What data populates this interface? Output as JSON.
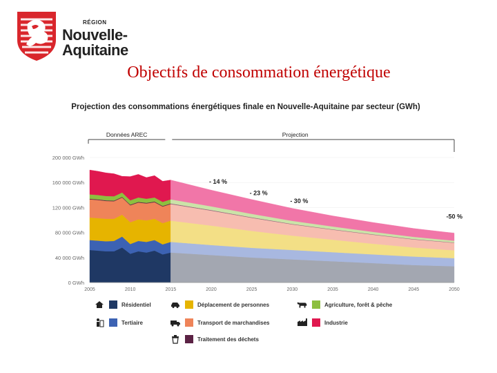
{
  "logo": {
    "region_label": "RÉGION",
    "name_line1": "Nouvelle-",
    "name_line2": "Aquitaine",
    "brand_color": "#d9262c"
  },
  "slide_title": "Objectifs de consommation énergétique",
  "chart_data": {
    "type": "area",
    "stacked": true,
    "title": "Projection des consommations énergétiques finale en Nouvelle-Aquitaine par secteur (GWh)",
    "xlabel": "",
    "ylabel": "",
    "xlim": [
      2005,
      2050
    ],
    "ylim": [
      0,
      200000
    ],
    "x_ticks": [
      2005,
      2010,
      2015,
      2020,
      2025,
      2030,
      2035,
      2040,
      2045,
      2050
    ],
    "x_tick_labels": [
      "2005",
      "2010",
      "2015",
      "2020",
      "2025",
      "2030",
      "2035",
      "2040",
      "2045",
      "2050"
    ],
    "y_ticks": [
      0,
      40000,
      80000,
      120000,
      160000,
      200000
    ],
    "y_tick_labels": [
      "0 GWh",
      "40 000 GWh",
      "80 000 GWh",
      "120 000 GWh",
      "160 000 GWh",
      "200 000 GWh"
    ],
    "periods": [
      {
        "label": "Données AREC",
        "from": 2005,
        "to": 2015
      },
      {
        "label": "Projection",
        "from": 2015,
        "to": 2050
      }
    ],
    "x": [
      2005,
      2006,
      2007,
      2008,
      2009,
      2010,
      2011,
      2012,
      2013,
      2014,
      2015,
      2020,
      2025,
      2030,
      2035,
      2040,
      2045,
      2050
    ],
    "series": [
      {
        "name": "Résidentiel",
        "color": "#1f3864",
        "projection_color": "#a3a7b1",
        "values": [
          52000,
          51000,
          50000,
          50000,
          56000,
          46000,
          50000,
          48000,
          51000,
          45000,
          48000,
          44000,
          40000,
          37000,
          34000,
          31000,
          28000,
          26000
        ]
      },
      {
        "name": "Tertiaire",
        "color": "#3c62b3",
        "projection_color": "#a8b8e0",
        "values": [
          16000,
          16000,
          16000,
          16500,
          17500,
          15500,
          16500,
          17000,
          17000,
          16000,
          17000,
          16000,
          15500,
          15000,
          14500,
          14000,
          13500,
          13000
        ]
      },
      {
        "name": "Déplacement de personnes",
        "color": "#e6b400",
        "projection_color": "#f3df86",
        "values": [
          36000,
          36000,
          36000,
          35500,
          35000,
          35000,
          34500,
          34500,
          34000,
          34000,
          34000,
          31000,
          27000,
          23000,
          20000,
          17000,
          14500,
          12500
        ]
      },
      {
        "name": "Transport de marchandises",
        "color": "#ef8459",
        "projection_color": "#f7bdb0",
        "values": [
          29000,
          29000,
          28500,
          28000,
          27500,
          27000,
          27000,
          27000,
          26500,
          26500,
          26500,
          24000,
          21000,
          18000,
          16000,
          14500,
          13000,
          12000
        ]
      },
      {
        "name": "Traitement des déchets",
        "color": "#5b2244",
        "projection_color": "#8e5d78",
        "values": [
          1000,
          1000,
          1000,
          1000,
          1000,
          1000,
          1000,
          1000,
          1000,
          1000,
          1000,
          900,
          800,
          700,
          600,
          500,
          500,
          500
        ]
      },
      {
        "name": "Agriculture, forêt & pêche",
        "color": "#8dbf3f",
        "projection_color": "#cbe3a8",
        "values": [
          7000,
          7000,
          7000,
          7000,
          7000,
          7000,
          7000,
          6500,
          6500,
          6500,
          6500,
          6000,
          5500,
          5000,
          4500,
          4000,
          3500,
          3000
        ]
      },
      {
        "name": "Industrie",
        "color": "#e0184f",
        "projection_color": "#f176a8",
        "values": [
          39000,
          38000,
          37000,
          36000,
          26000,
          38000,
          37000,
          34000,
          35000,
          33000,
          31000,
          26000,
          23000,
          20000,
          17000,
          15000,
          13500,
          12000
        ]
      }
    ],
    "annotations": [
      {
        "text": "- 14 %",
        "x": 2020,
        "y": 158000
      },
      {
        "text": "- 23 %",
        "x": 2025,
        "y": 140000
      },
      {
        "text": "- 30 %",
        "x": 2030,
        "y": 127000
      },
      {
        "text": "-50 %",
        "x": 2050,
        "y": 102000
      }
    ]
  },
  "legend": [
    {
      "name": "Résidentiel",
      "icon": "house-icon",
      "color": "#1f3864"
    },
    {
      "name": "Déplacement de personnes",
      "icon": "car-icon",
      "color": "#e6b400"
    },
    {
      "name": "Agriculture, forêt & pêche",
      "icon": "cow-icon",
      "color": "#8dbf3f"
    },
    {
      "name": "Tertiaire",
      "icon": "office-worker-icon",
      "color": "#3c62b3"
    },
    {
      "name": "Transport de marchandises",
      "icon": "truck-icon",
      "color": "#ef8459"
    },
    {
      "name": "Industrie",
      "icon": "factory-icon",
      "color": "#e0184f"
    },
    {
      "name": "Traitement des déchets",
      "icon": "trash-can-icon",
      "color": "#5b2244"
    }
  ]
}
